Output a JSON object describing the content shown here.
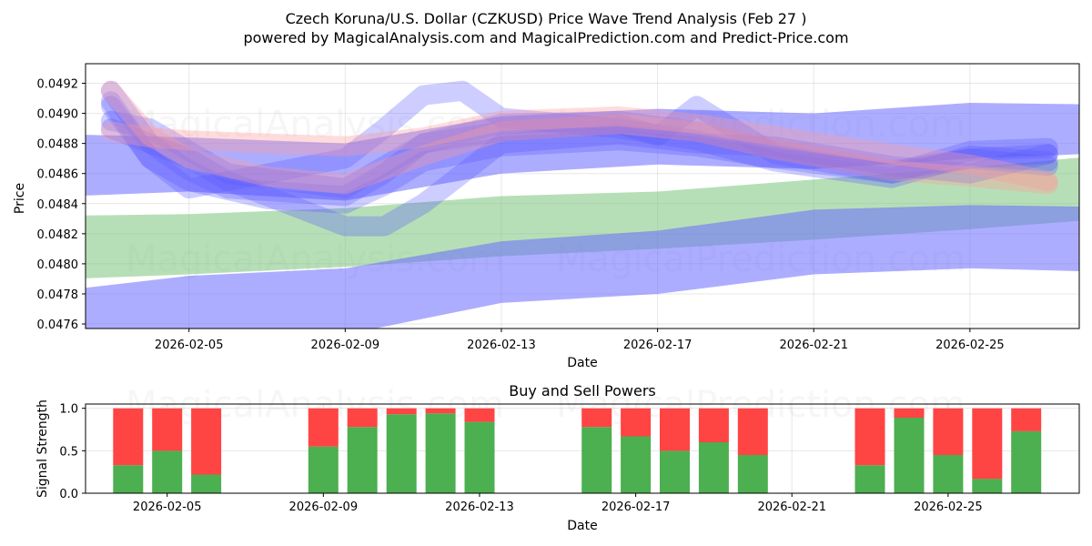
{
  "title_line1": "Czech Koruna/U.S. Dollar (CZKUSD) Price Wave Trend Analysis (Feb 27 )",
  "title_line2": "powered by MagicalAnalysis.com and MagicalPrediction.com and Predict-Price.com",
  "watermarks": [
    "MagicalAnalysis.com",
    "MagicalPrediction.com"
  ],
  "colors": {
    "buy": "#4caf50",
    "sell": "#ff4444",
    "wave_blue": "#5a5aff",
    "wave_red": "#ff9a9a",
    "band_green": "#7cc47c",
    "band_blue": "#6a6aff"
  },
  "chart_data": [
    {
      "type": "area",
      "title": "",
      "xlabel": "Date",
      "ylabel": "Price",
      "xlim": [
        "2026-02-02",
        "2026-02-28"
      ],
      "ylim": [
        0.04757,
        0.04933
      ],
      "grid": true,
      "x_ticks": [
        "2026-02-05",
        "2026-02-09",
        "2026-02-13",
        "2026-02-17",
        "2026-02-21",
        "2026-02-25"
      ],
      "y_ticks": [
        "0.0476",
        "0.0478",
        "0.0480",
        "0.0482",
        "0.0484",
        "0.0486",
        "0.0488",
        "0.0490",
        "0.0492"
      ],
      "series": [
        {
          "name": "green band",
          "color": "#7cc47c",
          "x": [
            "2026-02-02",
            "2026-02-05",
            "2026-02-09",
            "2026-02-13",
            "2026-02-17",
            "2026-02-21",
            "2026-02-25",
            "2026-02-28"
          ],
          "upper": [
            0.04832,
            0.04833,
            0.04837,
            0.04845,
            0.04848,
            0.04856,
            0.04864,
            0.04871
          ],
          "lower": [
            0.0479,
            0.04793,
            0.04798,
            0.04805,
            0.0481,
            0.04816,
            0.04823,
            0.04829
          ]
        },
        {
          "name": "blue band lower",
          "color": "#6a6aff",
          "x": [
            "2026-02-02",
            "2026-02-05",
            "2026-02-09",
            "2026-02-13",
            "2026-02-17",
            "2026-02-21",
            "2026-02-25",
            "2026-02-28"
          ],
          "upper": [
            0.04783,
            0.04792,
            0.04797,
            0.04815,
            0.04822,
            0.04836,
            0.04839,
            0.04838
          ],
          "lower": [
            0.0475,
            0.0475,
            0.04753,
            0.04774,
            0.0478,
            0.04793,
            0.04797,
            0.04795
          ]
        },
        {
          "name": "blue band upper",
          "color": "#6a6aff",
          "x": [
            "2026-02-02",
            "2026-02-05",
            "2026-02-09",
            "2026-02-13",
            "2026-02-17",
            "2026-02-21",
            "2026-02-25",
            "2026-02-28"
          ],
          "upper": [
            0.04886,
            0.04884,
            0.0488,
            0.04898,
            0.04903,
            0.049,
            0.04907,
            0.04906
          ],
          "lower": [
            0.04845,
            0.04848,
            0.04842,
            0.0486,
            0.04866,
            0.04863,
            0.0487,
            0.04873
          ]
        },
        {
          "name": "wave 1",
          "color": "#5a5aff",
          "x": [
            "2026-02-03",
            "2026-02-04",
            "2026-02-05",
            "2026-02-06",
            "2026-02-09",
            "2026-02-10",
            "2026-02-11",
            "2026-02-13",
            "2026-02-16",
            "2026-02-18",
            "2026-02-20",
            "2026-02-23",
            "2026-02-25",
            "2026-02-27"
          ],
          "y": [
            0.04915,
            0.0488,
            0.04862,
            0.0485,
            0.04845,
            0.0486,
            0.0488,
            0.04893,
            0.04895,
            0.04888,
            0.04876,
            0.04862,
            0.0487,
            0.04873
          ]
        },
        {
          "name": "wave 2",
          "color": "#5a5aff",
          "x": [
            "2026-02-03",
            "2026-02-04",
            "2026-02-05",
            "2026-02-07",
            "2026-02-09",
            "2026-02-10",
            "2026-02-11",
            "2026-02-13",
            "2026-02-16",
            "2026-02-18",
            "2026-02-20",
            "2026-02-23",
            "2026-02-25",
            "2026-02-27"
          ],
          "y": [
            0.04908,
            0.0487,
            0.04855,
            0.04843,
            0.0484,
            0.04852,
            0.04868,
            0.04878,
            0.04882,
            0.04878,
            0.0487,
            0.0486,
            0.04875,
            0.04877
          ]
        },
        {
          "name": "wave 3",
          "color": "#5a5aff",
          "x": [
            "2026-02-03",
            "2026-02-04",
            "2026-02-05",
            "2026-02-06",
            "2026-02-09",
            "2026-02-10",
            "2026-02-11",
            "2026-02-12",
            "2026-02-13",
            "2026-02-16",
            "2026-02-18",
            "2026-02-20",
            "2026-02-23",
            "2026-02-25",
            "2026-02-27"
          ],
          "y": [
            0.04905,
            0.0487,
            0.0485,
            0.04855,
            0.0487,
            0.0489,
            0.04912,
            0.04915,
            0.04897,
            0.0489,
            0.04882,
            0.04868,
            0.04857,
            0.04872,
            0.04868
          ]
        },
        {
          "name": "wave 4",
          "color": "#5a5aff",
          "x": [
            "2026-02-03",
            "2026-02-04",
            "2026-02-05",
            "2026-02-06",
            "2026-02-08",
            "2026-02-09",
            "2026-02-10",
            "2026-02-11",
            "2026-02-13",
            "2026-02-16",
            "2026-02-18",
            "2026-02-20",
            "2026-02-23",
            "2026-02-25",
            "2026-02-27"
          ],
          "y": [
            0.0489,
            0.0488,
            0.0487,
            0.04855,
            0.04835,
            0.04825,
            0.04825,
            0.0484,
            0.0488,
            0.04886,
            0.0488,
            0.04878,
            0.04865,
            0.0486,
            0.04873
          ]
        },
        {
          "name": "wave 5",
          "color": "#5a5aff",
          "x": [
            "2026-02-03",
            "2026-02-04",
            "2026-02-05",
            "2026-02-06",
            "2026-02-09",
            "2026-02-10",
            "2026-02-11",
            "2026-02-13",
            "2026-02-16",
            "2026-02-17",
            "2026-02-18",
            "2026-02-20",
            "2026-02-23",
            "2026-02-25",
            "2026-02-27"
          ],
          "y": [
            0.04895,
            0.0489,
            0.04875,
            0.0486,
            0.0485,
            0.04865,
            0.0488,
            0.04888,
            0.04893,
            0.04885,
            0.04905,
            0.04873,
            0.0486,
            0.0487,
            0.04865
          ]
        },
        {
          "name": "wave red 1",
          "color": "#ff9a9a",
          "x": [
            "2026-02-03",
            "2026-02-04",
            "2026-02-05",
            "2026-02-07",
            "2026-02-09",
            "2026-02-11",
            "2026-02-13",
            "2026-02-16",
            "2026-02-18",
            "2026-02-20",
            "2026-02-23",
            "2026-02-25",
            "2026-02-27"
          ],
          "y": [
            0.04915,
            0.04885,
            0.0487,
            0.04858,
            0.04853,
            0.04872,
            0.04888,
            0.04893,
            0.04888,
            0.04876,
            0.04862,
            0.04858,
            0.04853
          ]
        },
        {
          "name": "wave red 2",
          "color": "#ff9a9a",
          "x": [
            "2026-02-03",
            "2026-02-04",
            "2026-02-05",
            "2026-02-07",
            "2026-02-09",
            "2026-02-11",
            "2026-02-13",
            "2026-02-16",
            "2026-02-18",
            "2026-02-20",
            "2026-02-23",
            "2026-02-25",
            "2026-02-27"
          ],
          "y": [
            0.04888,
            0.04884,
            0.04882,
            0.0488,
            0.04878,
            0.04884,
            0.04895,
            0.04898,
            0.04893,
            0.04885,
            0.04873,
            0.04866,
            0.04855
          ]
        }
      ]
    },
    {
      "type": "bar",
      "title": "Buy and Sell Powers",
      "xlabel": "Date",
      "ylabel": "Signal Strength",
      "ylim": [
        0,
        1.05
      ],
      "y_ticks": [
        "0.0",
        "0.5",
        "1.0"
      ],
      "x_ticks": [
        "2026-02-05",
        "2026-02-09",
        "2026-02-13",
        "2026-02-17",
        "2026-02-21",
        "2026-02-25"
      ],
      "categories": [
        "2026-02-04",
        "2026-02-05",
        "2026-02-06",
        "2026-02-09",
        "2026-02-10",
        "2026-02-11",
        "2026-02-12",
        "2026-02-13",
        "2026-02-16",
        "2026-02-17",
        "2026-02-18",
        "2026-02-19",
        "2026-02-20",
        "2026-02-23",
        "2026-02-24",
        "2026-02-25",
        "2026-02-26",
        "2026-02-27"
      ],
      "series": [
        {
          "name": "Buy",
          "color": "#4caf50",
          "values": [
            0.33,
            0.5,
            0.22,
            0.55,
            0.78,
            0.93,
            0.94,
            0.84,
            0.78,
            0.67,
            0.5,
            0.6,
            0.45,
            0.33,
            0.89,
            0.45,
            0.17,
            0.73
          ]
        },
        {
          "name": "Sell",
          "color": "#ff4444",
          "values": [
            0.67,
            0.5,
            0.78,
            0.45,
            0.22,
            0.07,
            0.06,
            0.16,
            0.22,
            0.33,
            0.5,
            0.4,
            0.55,
            0.67,
            0.11,
            0.55,
            0.83,
            0.27
          ]
        }
      ]
    }
  ]
}
